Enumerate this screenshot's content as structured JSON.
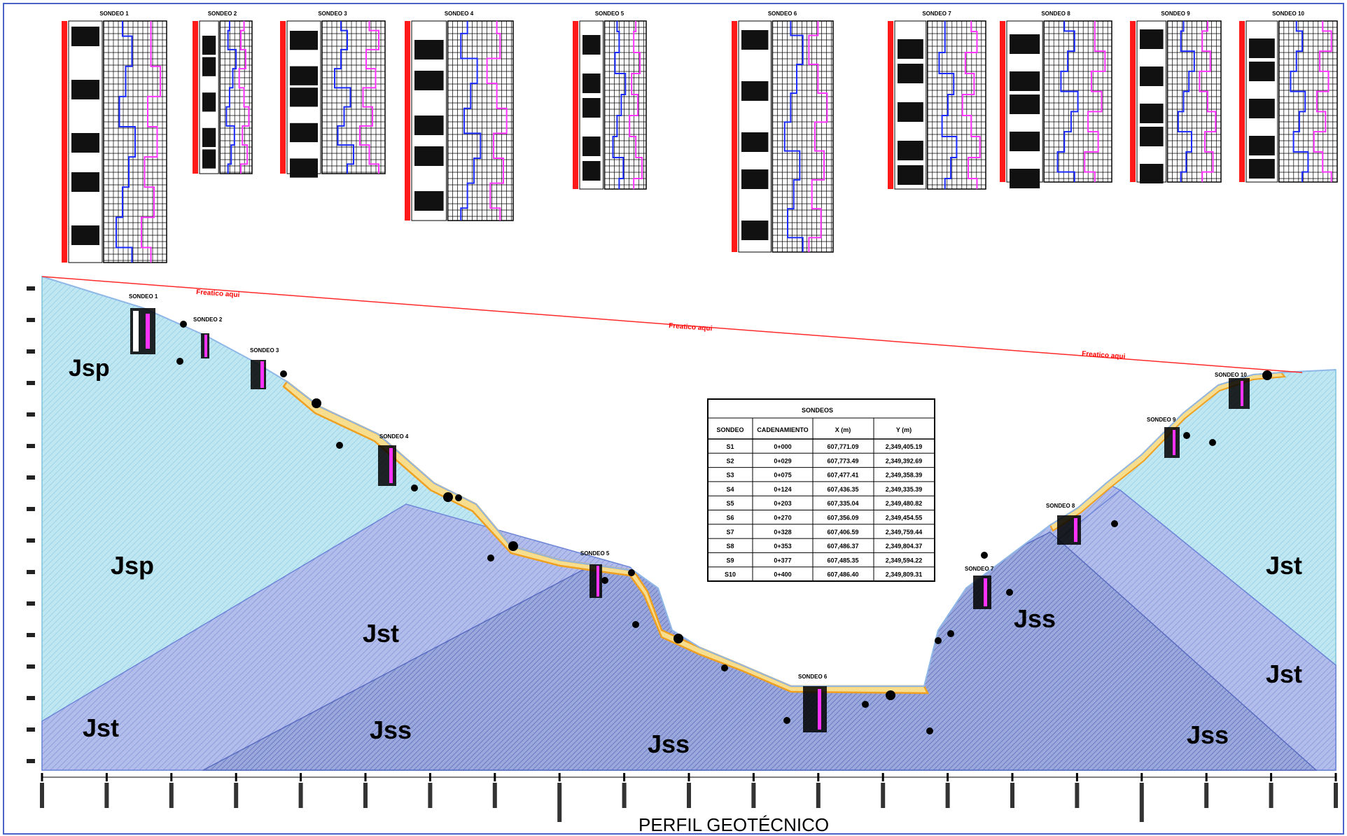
{
  "figure": {
    "title": "PERFIL GEOTÉCNICO",
    "water_table_label": "Freatico aqui",
    "colors": {
      "jsp": "#b6e4f0",
      "jst": "#aab6ea",
      "jss": "#8ea0d8",
      "fill": "#f6dc8a",
      "water_line": "#ff2a2a",
      "log_red": "#ff1a1a",
      "log_blue": "#1a2aff",
      "log_magenta": "#ff33ff"
    }
  },
  "units": [
    {
      "label": "Jsp"
    },
    {
      "label": "Jsp"
    },
    {
      "label": "Jst"
    },
    {
      "label": "Jst"
    },
    {
      "label": "Jst"
    },
    {
      "label": "Jst"
    },
    {
      "label": "Jss"
    },
    {
      "label": "Jss"
    },
    {
      "label": "Jss"
    },
    {
      "label": "Jss"
    }
  ],
  "logs": [
    {
      "title": "SONDEO 1"
    },
    {
      "title": "SONDEO 2"
    },
    {
      "title": "SONDEO 3"
    },
    {
      "title": "SONDEO 4"
    },
    {
      "title": "SONDEO 5"
    },
    {
      "title": "SONDEO 6"
    },
    {
      "title": "SONDEO 7"
    },
    {
      "title": "SONDEO 8"
    },
    {
      "title": "SONDEO 9"
    },
    {
      "title": "SONDEO 10"
    }
  ],
  "section_sondeos": [
    {
      "label": "SONDEO 1"
    },
    {
      "label": "SONDEO 2"
    },
    {
      "label": "SONDEO 3"
    },
    {
      "label": "SONDEO 4"
    },
    {
      "label": "SONDEO 5"
    },
    {
      "label": "SONDEO 6"
    },
    {
      "label": "SONDEO 7"
    },
    {
      "label": "SONDEO 8"
    },
    {
      "label": "SONDEO 9"
    },
    {
      "label": "SONDEO 10"
    }
  ],
  "table": {
    "title": "SONDEOS",
    "headers": [
      "SONDEO",
      "CADENAMIENTO",
      "X (m)",
      "Y (m)"
    ],
    "rows": [
      [
        "S1",
        "0+000",
        "607,771.09",
        "2,349,405.19"
      ],
      [
        "S2",
        "0+029",
        "607,773.49",
        "2,349,392.69"
      ],
      [
        "S3",
        "0+075",
        "607,477.41",
        "2,349,358.39"
      ],
      [
        "S4",
        "0+124",
        "607,436.35",
        "2,349,335.39"
      ],
      [
        "S5",
        "0+203",
        "607,335.04",
        "2,349,480.82"
      ],
      [
        "S6",
        "0+270",
        "607,356.09",
        "2,349,454.55"
      ],
      [
        "S7",
        "0+328",
        "607,406.59",
        "2,349,759.44"
      ],
      [
        "S8",
        "0+353",
        "607,486.37",
        "2,349,804.37"
      ],
      [
        "S9",
        "0+377",
        "607,485.35",
        "2,349,594.22"
      ],
      [
        "S10",
        "0+400",
        "607,486.40",
        "2,349,809.31"
      ]
    ]
  }
}
